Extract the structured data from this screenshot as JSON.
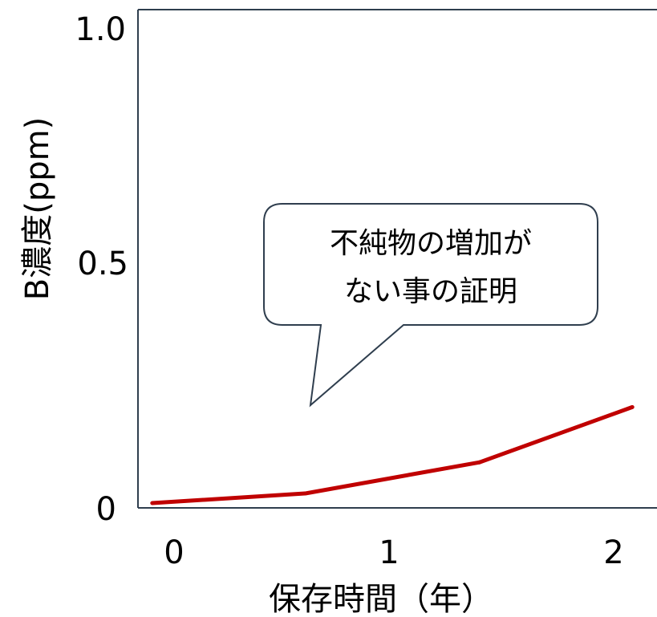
{
  "chart_data": {
    "type": "line",
    "xlabel": "保存時間（年）",
    "ylabel": "B濃度(ppm)",
    "x_ticks": [
      "0",
      "1",
      "2"
    ],
    "y_ticks": [
      "0",
      "0.5",
      "1.0"
    ],
    "xlim": [
      -0.15,
      2.25
    ],
    "ylim": [
      0,
      1.0
    ],
    "grid": false,
    "series": [
      {
        "color": "#c00000",
        "x": [
          -0.1,
          0.6,
          1.4,
          2.1
        ],
        "y": [
          0.005,
          0.025,
          0.09,
          0.205
        ]
      }
    ],
    "annotation": {
      "lines": [
        "不純物の増加が",
        "ない事の証明"
      ]
    }
  }
}
